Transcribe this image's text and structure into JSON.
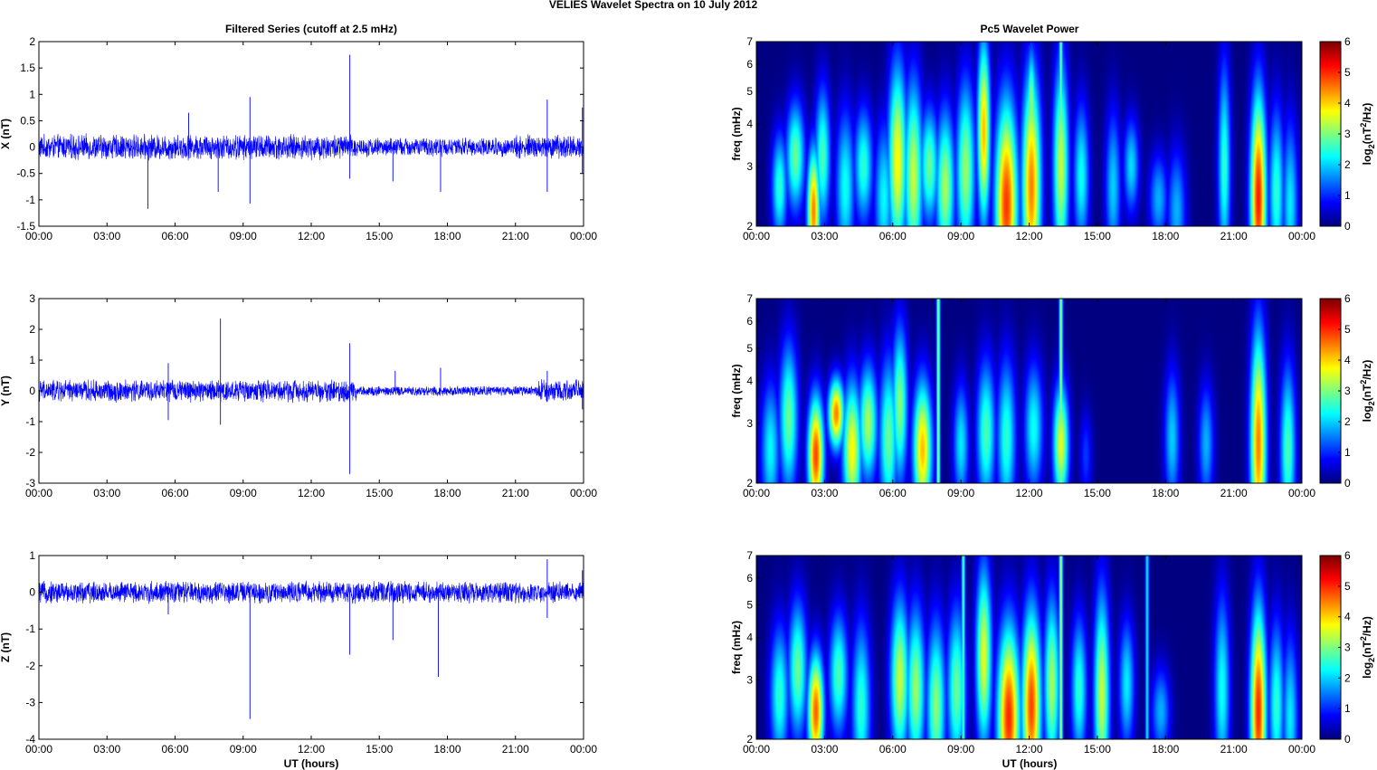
{
  "figure": {
    "title": "VELIES Wavelet Spectra on 10 July     2012",
    "left_title": "Filtered Series (cutoff at 2.5 mHz)",
    "right_title": "Pc5 Wavelet Power",
    "xlabel": "UT (hours)",
    "x_ticks": [
      "00:00",
      "03:00",
      "06:00",
      "09:00",
      "12:00",
      "15:00",
      "18:00",
      "21:00",
      "00:00"
    ],
    "colors": {
      "series": "#0000ff",
      "cmap": "jet"
    }
  },
  "chart_data": [
    {
      "type": "line",
      "panel": "X",
      "ylabel": "X (nT)",
      "xlabel": "",
      "xlim": [
        0,
        24
      ],
      "ylim": [
        -1.5,
        2
      ],
      "y_ticks": [
        "2",
        "1.5",
        "1",
        "0.5",
        "0",
        "-0.5",
        "-1",
        "-1.5"
      ],
      "noise_amplitude": 0.2,
      "spikes": [
        {
          "t": 4.8,
          "v": -1.17
        },
        {
          "t": 6.6,
          "v": 0.65
        },
        {
          "t": 7.9,
          "v": -0.85
        },
        {
          "t": 9.3,
          "v": 0.95
        },
        {
          "t": 9.3,
          "v": -1.07
        },
        {
          "t": 13.7,
          "v": 1.75
        },
        {
          "t": 13.7,
          "v": -0.6
        },
        {
          "t": 15.6,
          "v": -0.65
        },
        {
          "t": 17.7,
          "v": -0.85
        },
        {
          "t": 22.4,
          "v": 0.9
        },
        {
          "t": 22.4,
          "v": -0.85
        },
        {
          "t": 23.95,
          "v": 0.75
        },
        {
          "t": 23.95,
          "v": -0.5
        }
      ]
    },
    {
      "type": "line",
      "panel": "Y",
      "ylabel": "Y (nT)",
      "xlabel": "",
      "xlim": [
        0,
        24
      ],
      "ylim": [
        -3,
        3
      ],
      "y_ticks": [
        "3",
        "2",
        "1",
        "0",
        "-1",
        "-2",
        "-3"
      ],
      "noise_amplitude": 0.3,
      "spikes": [
        {
          "t": 5.7,
          "v": 0.9
        },
        {
          "t": 5.7,
          "v": -0.95
        },
        {
          "t": 8.0,
          "v": 2.35
        },
        {
          "t": 8.0,
          "v": -1.1
        },
        {
          "t": 13.7,
          "v": 1.55
        },
        {
          "t": 13.7,
          "v": -2.7
        },
        {
          "t": 15.7,
          "v": 0.65
        },
        {
          "t": 17.7,
          "v": 0.75
        },
        {
          "t": 22.4,
          "v": 0.65
        },
        {
          "t": 23.95,
          "v": -0.6
        }
      ]
    },
    {
      "type": "line",
      "panel": "Z",
      "ylabel": "Z (nT)",
      "xlabel": "UT (hours)",
      "xlim": [
        0,
        24
      ],
      "ylim": [
        -4,
        1
      ],
      "y_ticks": [
        "1",
        "0",
        "-1",
        "-2",
        "-3",
        "-4"
      ],
      "noise_amplitude": 0.25,
      "spikes": [
        {
          "t": 5.7,
          "v": -0.6
        },
        {
          "t": 9.3,
          "v": -3.45
        },
        {
          "t": 13.7,
          "v": -1.7
        },
        {
          "t": 15.6,
          "v": -1.3
        },
        {
          "t": 17.6,
          "v": -2.3
        },
        {
          "t": 22.4,
          "v": 0.9
        },
        {
          "t": 22.4,
          "v": -0.7
        },
        {
          "t": 23.95,
          "v": 0.6
        }
      ]
    },
    {
      "type": "heatmap",
      "panel": "X power",
      "ylabel": "freq (mHz)",
      "xlabel": "",
      "xlim": [
        0,
        24
      ],
      "ylim": [
        2,
        7
      ],
      "y_scale": "log",
      "y_ticks": [
        "7",
        "6",
        "5",
        "4",
        "3",
        "2"
      ],
      "colorbar_label": "log2(nT2/Hz)",
      "colorbar_ticks": [
        "6",
        "5",
        "4",
        "3",
        "2",
        "1",
        "0"
      ],
      "clim": [
        0,
        6
      ],
      "blobs": [
        {
          "t": 1.0,
          "f": 2.6,
          "p": 2.8,
          "w": 0.25,
          "h": 3.4
        },
        {
          "t": 1.7,
          "f": 3.2,
          "p": 3.2,
          "w": 0.3,
          "h": 4.2
        },
        {
          "t": 2.5,
          "f": 2.2,
          "p": 5.0,
          "w": 0.2,
          "h": 3.0
        },
        {
          "t": 2.9,
          "f": 3.2,
          "p": 3.0,
          "w": 0.25,
          "h": 4.5
        },
        {
          "t": 3.9,
          "f": 2.6,
          "p": 2.6,
          "w": 0.3,
          "h": 3.8
        },
        {
          "t": 4.7,
          "f": 3.0,
          "p": 2.8,
          "w": 0.3,
          "h": 4.0
        },
        {
          "t": 5.6,
          "f": 2.4,
          "p": 2.5,
          "w": 0.3,
          "h": 3.5
        },
        {
          "t": 6.2,
          "f": 3.1,
          "p": 4.2,
          "w": 0.3,
          "h": 5.0
        },
        {
          "t": 6.9,
          "f": 2.8,
          "p": 3.8,
          "w": 0.3,
          "h": 4.5
        },
        {
          "t": 7.6,
          "f": 3.0,
          "p": 3.2,
          "w": 0.3,
          "h": 4.0
        },
        {
          "t": 8.3,
          "f": 2.6,
          "p": 3.6,
          "w": 0.3,
          "h": 3.8
        },
        {
          "t": 9.2,
          "f": 2.9,
          "p": 3.5,
          "w": 0.3,
          "h": 4.5
        },
        {
          "t": 10.0,
          "f": 3.8,
          "p": 4.6,
          "w": 0.2,
          "h": 6.0
        },
        {
          "t": 11.0,
          "f": 2.3,
          "p": 5.5,
          "w": 0.35,
          "h": 3.8
        },
        {
          "t": 12.1,
          "f": 2.6,
          "p": 5.0,
          "w": 0.3,
          "h": 4.5
        },
        {
          "t": 12.1,
          "f": 4.5,
          "p": 3.5,
          "w": 0.15,
          "h": 6.0
        },
        {
          "t": 13.4,
          "f": 3.0,
          "p": 3.8,
          "w": 0.25,
          "h": 5.0
        },
        {
          "t": 14.3,
          "f": 2.8,
          "p": 2.6,
          "w": 0.25,
          "h": 4.0
        },
        {
          "t": 15.7,
          "f": 2.6,
          "p": 2.2,
          "w": 0.25,
          "h": 3.8
        },
        {
          "t": 16.5,
          "f": 3.0,
          "p": 2.3,
          "w": 0.25,
          "h": 3.8
        },
        {
          "t": 17.7,
          "f": 2.4,
          "p": 2.0,
          "w": 0.3,
          "h": 3.0
        },
        {
          "t": 18.5,
          "f": 2.2,
          "p": 2.0,
          "w": 0.3,
          "h": 3.0
        },
        {
          "t": 20.6,
          "f": 3.0,
          "p": 2.8,
          "w": 0.2,
          "h": 5.0
        },
        {
          "t": 22.1,
          "f": 2.4,
          "p": 5.7,
          "w": 0.25,
          "h": 4.0
        },
        {
          "t": 22.9,
          "f": 2.5,
          "p": 2.8,
          "w": 0.25,
          "h": 3.8
        },
        {
          "t": 23.5,
          "f": 2.3,
          "p": 2.4,
          "w": 0.25,
          "h": 3.5
        }
      ],
      "lines": [
        {
          "t": 13.4,
          "p": 3.2
        }
      ]
    },
    {
      "type": "heatmap",
      "panel": "Y power",
      "ylabel": "freq (mHz)",
      "xlabel": "",
      "xlim": [
        0,
        24
      ],
      "ylim": [
        2,
        7
      ],
      "y_scale": "log",
      "y_ticks": [
        "7",
        "6",
        "5",
        "4",
        "3",
        "2"
      ],
      "colorbar_label": "log2(nT2/Hz)",
      "colorbar_ticks": [
        "6",
        "5",
        "4",
        "3",
        "2",
        "1",
        "0"
      ],
      "clim": [
        0,
        6
      ],
      "blobs": [
        {
          "t": 0.6,
          "f": 2.5,
          "p": 2.5,
          "w": 0.3,
          "h": 3.5
        },
        {
          "t": 1.4,
          "f": 3.1,
          "p": 3.2,
          "w": 0.3,
          "h": 4.5
        },
        {
          "t": 2.6,
          "f": 2.4,
          "p": 5.4,
          "w": 0.25,
          "h": 3.2
        },
        {
          "t": 3.5,
          "f": 3.2,
          "p": 5.0,
          "w": 0.25,
          "h": 3.8
        },
        {
          "t": 4.2,
          "f": 2.5,
          "p": 4.2,
          "w": 0.3,
          "h": 3.5
        },
        {
          "t": 4.9,
          "f": 3.0,
          "p": 3.6,
          "w": 0.3,
          "h": 4.0
        },
        {
          "t": 5.8,
          "f": 2.7,
          "p": 3.2,
          "w": 0.3,
          "h": 4.0
        },
        {
          "t": 6.3,
          "f": 3.4,
          "p": 3.4,
          "w": 0.25,
          "h": 5.0
        },
        {
          "t": 7.3,
          "f": 2.5,
          "p": 4.6,
          "w": 0.3,
          "h": 3.5
        },
        {
          "t": 9.0,
          "f": 2.6,
          "p": 2.4,
          "w": 0.25,
          "h": 3.5
        },
        {
          "t": 10.1,
          "f": 2.8,
          "p": 3.0,
          "w": 0.3,
          "h": 4.0
        },
        {
          "t": 11.0,
          "f": 2.7,
          "p": 2.8,
          "w": 0.3,
          "h": 4.0
        },
        {
          "t": 12.2,
          "f": 2.9,
          "p": 2.6,
          "w": 0.3,
          "h": 4.0
        },
        {
          "t": 13.4,
          "f": 2.6,
          "p": 4.0,
          "w": 0.25,
          "h": 3.5
        },
        {
          "t": 14.5,
          "f": 2.4,
          "p": 1.2,
          "w": 0.2,
          "h": 3.0
        },
        {
          "t": 18.3,
          "f": 2.7,
          "p": 2.2,
          "w": 0.25,
          "h": 3.8
        },
        {
          "t": 19.8,
          "f": 2.6,
          "p": 2.0,
          "w": 0.25,
          "h": 3.5
        },
        {
          "t": 22.1,
          "f": 2.6,
          "p": 5.0,
          "w": 0.25,
          "h": 4.5
        },
        {
          "t": 23.4,
          "f": 2.5,
          "p": 3.0,
          "w": 0.25,
          "h": 3.8
        }
      ],
      "lines": [
        {
          "t": 8.0,
          "p": 3.5
        },
        {
          "t": 13.4,
          "p": 3.5
        }
      ]
    },
    {
      "type": "heatmap",
      "panel": "Z power",
      "ylabel": "freq (mHz)",
      "xlabel": "UT (hours)",
      "xlim": [
        0,
        24
      ],
      "ylim": [
        2,
        7
      ],
      "y_scale": "log",
      "y_ticks": [
        "7",
        "6",
        "5",
        "4",
        "3",
        "2"
      ],
      "colorbar_label": "log2(nT2/Hz)",
      "colorbar_ticks": [
        "6",
        "5",
        "4",
        "3",
        "2",
        "1",
        "0"
      ],
      "clim": [
        0,
        6
      ],
      "blobs": [
        {
          "t": 1.0,
          "f": 2.7,
          "p": 2.8,
          "w": 0.3,
          "h": 3.8
        },
        {
          "t": 1.8,
          "f": 3.2,
          "p": 3.2,
          "w": 0.3,
          "h": 4.5
        },
        {
          "t": 2.6,
          "f": 2.4,
          "p": 5.2,
          "w": 0.25,
          "h": 3.2
        },
        {
          "t": 3.6,
          "f": 3.1,
          "p": 3.0,
          "w": 0.3,
          "h": 4.2
        },
        {
          "t": 4.6,
          "f": 2.5,
          "p": 2.8,
          "w": 0.3,
          "h": 3.8
        },
        {
          "t": 6.3,
          "f": 3.0,
          "p": 3.8,
          "w": 0.3,
          "h": 4.5
        },
        {
          "t": 7.0,
          "f": 2.8,
          "p": 3.5,
          "w": 0.3,
          "h": 4.2
        },
        {
          "t": 7.9,
          "f": 2.5,
          "p": 3.4,
          "w": 0.3,
          "h": 3.8
        },
        {
          "t": 8.8,
          "f": 2.8,
          "p": 3.2,
          "w": 0.3,
          "h": 4.2
        },
        {
          "t": 10.0,
          "f": 3.5,
          "p": 4.0,
          "w": 0.25,
          "h": 5.5
        },
        {
          "t": 11.1,
          "f": 2.3,
          "p": 5.6,
          "w": 0.35,
          "h": 3.6
        },
        {
          "t": 12.1,
          "f": 2.5,
          "p": 5.4,
          "w": 0.3,
          "h": 4.0
        },
        {
          "t": 13.0,
          "f": 2.9,
          "p": 3.6,
          "w": 0.25,
          "h": 4.5
        },
        {
          "t": 14.2,
          "f": 2.8,
          "p": 2.8,
          "w": 0.25,
          "h": 4.0
        },
        {
          "t": 15.2,
          "f": 2.7,
          "p": 3.8,
          "w": 0.25,
          "h": 4.5
        },
        {
          "t": 16.3,
          "f": 2.9,
          "p": 2.4,
          "w": 0.25,
          "h": 4.0
        },
        {
          "t": 17.8,
          "f": 2.4,
          "p": 2.0,
          "w": 0.3,
          "h": 3.0
        },
        {
          "t": 20.5,
          "f": 2.8,
          "p": 2.6,
          "w": 0.25,
          "h": 4.5
        },
        {
          "t": 22.1,
          "f": 2.4,
          "p": 5.6,
          "w": 0.25,
          "h": 4.0
        },
        {
          "t": 22.9,
          "f": 2.5,
          "p": 2.8,
          "w": 0.25,
          "h": 3.8
        },
        {
          "t": 23.5,
          "f": 2.3,
          "p": 2.4,
          "w": 0.25,
          "h": 3.5
        }
      ],
      "lines": [
        {
          "t": 9.1,
          "p": 3.0
        },
        {
          "t": 13.4,
          "p": 3.6
        },
        {
          "t": 17.2,
          "p": 2.4
        }
      ]
    }
  ]
}
